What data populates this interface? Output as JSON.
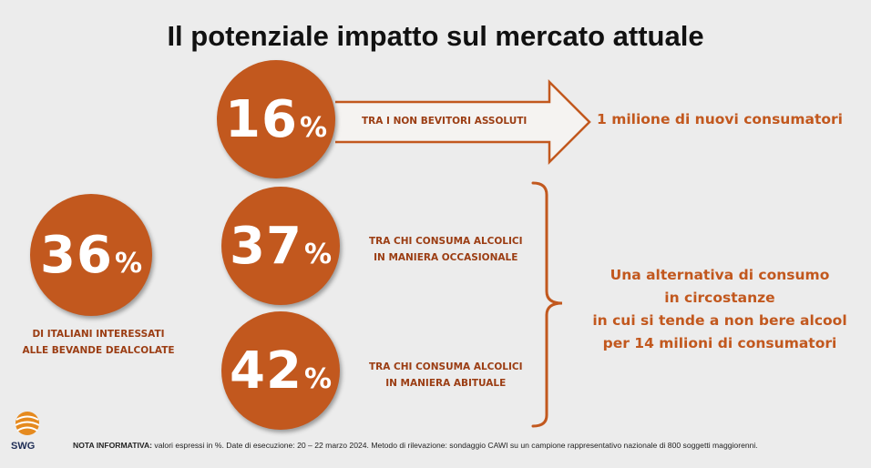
{
  "title": "Il potenziale impatto sul mercato attuale",
  "colors": {
    "accent": "#c2581e",
    "label": "#9b3d13",
    "background": "#ececec"
  },
  "circles": {
    "c36": {
      "value": "36",
      "unit": "%",
      "label_line1": "DI ITALIANI INTERESSATI",
      "label_line2": "ALLE BEVANDE DEALCOLATE"
    },
    "c16": {
      "value": "16",
      "unit": "%",
      "label_line1": "TRA I NON BEVITORI ASSOLUTI"
    },
    "c37": {
      "value": "37",
      "unit": "%",
      "label_line1": "TRA CHI CONSUMA ALCOLICI",
      "label_line2": "IN MANIERA OCCASIONALE"
    },
    "c42": {
      "value": "42",
      "unit": "%",
      "label_line1": "TRA CHI CONSUMA ALCOLICI",
      "label_line2": "IN MANIERA ABITUALE"
    }
  },
  "callouts": {
    "top": "1 milione di nuovi consumatori",
    "main_line1": "Una alternativa di consumo",
    "main_line2": "in circostanze",
    "main_line3": "in cui si tende a non bere alcool",
    "main_line4": "per 14 milioni di consumatori"
  },
  "icons": {
    "arrow": "arrow-right-icon",
    "brace": "right-brace-icon",
    "logo": "swg-logo-icon"
  },
  "logo_text": "SWG",
  "note": {
    "label": "NOTA INFORMATIVA:",
    "text": " valori espressi in %. Date di esecuzione: 20 – 22 marzo 2024. Metodo di rilevazione: sondaggio CAWI su un campione rappresentativo nazionale di 800 soggetti maggiorenni."
  }
}
